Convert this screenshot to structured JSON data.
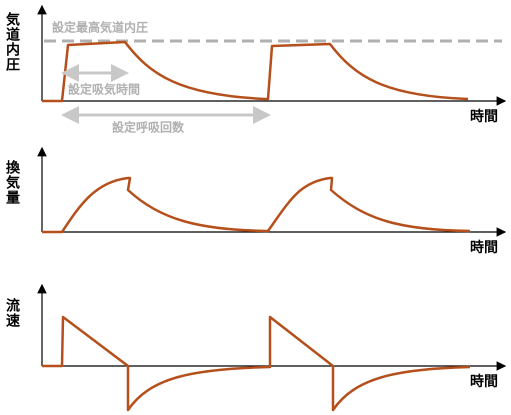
{
  "panels": [
    {
      "y_label": "気道内圧",
      "x_label": "時間",
      "annotations": [
        "設定最高気道内圧",
        "設定吸気時間",
        "設定呼吸回数"
      ]
    },
    {
      "y_label": "換気量",
      "x_label": "時間"
    },
    {
      "y_label": "流速",
      "x_label": "時間"
    }
  ]
}
